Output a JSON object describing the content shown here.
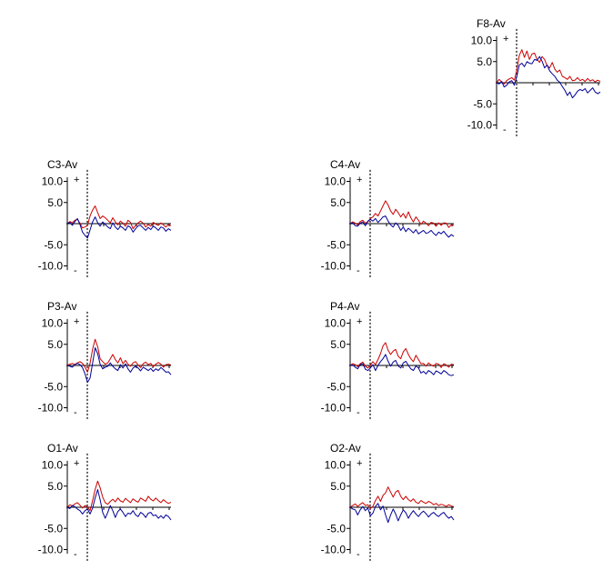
{
  "chart_data": {
    "type": "line",
    "y_ticks": [
      "10.0",
      "5.0",
      "-5.0",
      "-10.0"
    ],
    "y_tick_values": [
      10,
      5,
      -5,
      -10
    ],
    "ylim": [
      -11,
      11
    ],
    "x_ticks": [
      1,
      2,
      3,
      4,
      5
    ],
    "polarity_top": "+",
    "polarity_bottom": "-",
    "series_colors": [
      "#cc0000",
      "#000099"
    ],
    "panels": [
      {
        "title": "F8-Av",
        "series": [
          {
            "color": "#cc0000",
            "values": [
              0,
              0.8,
              0.2,
              -0.3,
              0.5,
              0.9,
              1.2,
              0.6,
              3,
              6.5,
              7.8,
              6,
              7.5,
              5.5,
              6.8,
              7,
              5.5,
              4.8,
              6.2,
              5.5,
              4,
              3.5,
              4.8,
              3.2,
              2.5,
              3,
              1.5,
              1.2,
              0.8,
              1.5,
              0.5,
              0.6,
              1.2,
              0.5,
              0.8,
              0.3,
              1,
              0.4,
              0.7,
              0.2,
              0.6,
              0.3
            ]
          },
          {
            "color": "#000099",
            "values": [
              0,
              -0.3,
              0.3,
              -1,
              -0.6,
              0.2,
              0.5,
              -0.6,
              1.5,
              4.2,
              4.6,
              3.8,
              5,
              4.6,
              4.5,
              5.5,
              5.3,
              6.2,
              5.1,
              3.5,
              4.2,
              2.8,
              2.1,
              1.5,
              0.6,
              0.1,
              -0.9,
              -1.8,
              -3,
              -2.2,
              -3.6,
              -2.9,
              -2,
              -1.6,
              -1.9,
              -1.4,
              -2.4,
              -1.8,
              -1.2,
              -2.2,
              -2.6,
              -2.2
            ]
          }
        ]
      },
      {
        "title": "C3-Av",
        "series": [
          {
            "color": "#cc0000",
            "values": [
              0,
              0.5,
              0.2,
              0.8,
              1,
              0.1,
              -1,
              -0.8,
              -0.4,
              1.8,
              3.2,
              4.2,
              2.6,
              1.2,
              1.8,
              1.4,
              0.8,
              0.2,
              1.4,
              0.4,
              -0.3,
              0.6,
              0.1,
              -0.6,
              0.8,
              0.3,
              -1.2,
              -0.4,
              0.2,
              0.6,
              0.1,
              -0.8,
              -0.2,
              -0.6,
              0.3,
              -0.1,
              -0.4,
              0.2,
              -0.3,
              -0.8,
              -0.2,
              -0.5
            ]
          },
          {
            "color": "#000099",
            "values": [
              0,
              0.3,
              -0.4,
              0.5,
              1.2,
              -0.2,
              -2,
              -2.8,
              -3.4,
              -1.5,
              0.4,
              1.6,
              0.2,
              -0.6,
              0.4,
              -0.2,
              -0.8,
              -1.2,
              0.2,
              -0.8,
              -1.4,
              -0.6,
              -1,
              -1.6,
              -0.5,
              -0.9,
              -2,
              -1.2,
              -0.5,
              -0.4,
              -1,
              -1.6,
              -0.9,
              -1.4,
              -0.6,
              -1,
              -1.6,
              -0.8,
              -1,
              -1.8,
              -1.2,
              -1.6
            ]
          }
        ]
      },
      {
        "title": "C4-Av",
        "series": [
          {
            "color": "#cc0000",
            "values": [
              0,
              0.4,
              0.1,
              -0.3,
              0.5,
              0.8,
              0.1,
              0.4,
              1.2,
              1.6,
              2.4,
              1.8,
              3,
              4.2,
              5.4,
              4.4,
              3,
              2.2,
              3.4,
              2.6,
              1.6,
              2.4,
              1.3,
              2.8,
              1.4,
              0.4,
              1.6,
              0.8,
              -0.2,
              0.6,
              0.1,
              -0.5,
              0.3,
              0.1,
              -0.6,
              0.2,
              -0.4,
              0.2,
              0.1,
              -0.9,
              -0.3,
              -0.4
            ]
          },
          {
            "color": "#000099",
            "values": [
              0,
              0.2,
              -0.5,
              -0.6,
              0.1,
              0.4,
              -0.5,
              0.6,
              1,
              0.6,
              1.2,
              0.3,
              0.9,
              1.6,
              1.8,
              0.6,
              -0.3,
              -0.8,
              0.2,
              -0.4,
              -1.6,
              -0.8,
              -1.9,
              -1.1,
              -1.6,
              -2.2,
              -1.4,
              -2.4,
              -2,
              -1.6,
              -2.3,
              -2.1,
              -1.6,
              -2.3,
              -2.8,
              -2,
              -2.4,
              -1.8,
              -2.6,
              -3.2,
              -2.6,
              -3
            ]
          }
        ]
      },
      {
        "title": "P3-Av",
        "series": [
          {
            "color": "#cc0000",
            "values": [
              0,
              0.3,
              0.5,
              0.2,
              0.6,
              0.9,
              0.5,
              -0.4,
              -1.6,
              0.5,
              3.8,
              6.2,
              4.4,
              1.6,
              0.9,
              0.3,
              0.6,
              1.6,
              2.6,
              1.4,
              0.6,
              1.8,
              0.4,
              1.2,
              0.3,
              -0.2,
              0.6,
              0.9,
              0.1,
              -0.5,
              0.4,
              0.8,
              0.2,
              0.5,
              -0.3,
              0.3,
              0.7,
              0.3,
              -0.4,
              0.2,
              0.3,
              0.1
            ]
          },
          {
            "color": "#000099",
            "values": [
              0,
              -0.2,
              -0.4,
              0.2,
              0.5,
              0.2,
              -0.5,
              -2,
              -4,
              -3,
              0.5,
              4.2,
              2.8,
              0.3,
              -0.8,
              -0.4,
              -0.2,
              0.6,
              -0.2,
              -0.8,
              -1.2,
              0.2,
              -0.6,
              0.4,
              -0.8,
              -1.6,
              -0.6,
              -0.2,
              -0.6,
              -1.3,
              -0.4,
              -0.8,
              -1.2,
              -0.7,
              -1.4,
              -0.8,
              -1.2,
              -0.5,
              -1,
              -1.6,
              -1.5,
              -2.2
            ]
          }
        ]
      },
      {
        "title": "P4-Av",
        "series": [
          {
            "color": "#cc0000",
            "values": [
              0,
              0.4,
              0.2,
              -0.3,
              0.4,
              0.8,
              -0.2,
              -0.6,
              0.1,
              0.9,
              0.2,
              1.4,
              2.8,
              4.6,
              5.4,
              3.6,
              2.6,
              3.4,
              3.8,
              2.2,
              1.6,
              3.2,
              4,
              2.6,
              1.6,
              0.9,
              2.4,
              1.4,
              0.4,
              0.5,
              -0.2,
              0.6,
              0.1,
              -0.2,
              0.5,
              0.3,
              -0.5,
              0.4,
              0.1,
              -0.4,
              0.3,
              0.2
            ]
          },
          {
            "color": "#000099",
            "values": [
              0,
              0.1,
              -0.4,
              -0.8,
              0.2,
              0.4,
              -0.9,
              -1.2,
              -0.6,
              0.2,
              -1.2,
              0,
              0.9,
              1.6,
              2.6,
              1,
              -0.2,
              0.8,
              1.2,
              -0.1,
              -0.6,
              0.6,
              1,
              0,
              -0.8,
              -1.2,
              -0.1,
              -0.6,
              -1.8,
              -1.4,
              -2,
              -1.2,
              -1.6,
              -2.2,
              -1.3,
              -1.6,
              -2,
              -1.2,
              -1.6,
              -2.2,
              -2.4,
              -2.2
            ]
          }
        ]
      },
      {
        "title": "O1-Av",
        "series": [
          {
            "color": "#cc0000",
            "values": [
              0,
              0.6,
              0.3,
              0.8,
              1.1,
              0.5,
              -0.2,
              0.4,
              0.1,
              -0.8,
              1.6,
              4.2,
              6.2,
              4.6,
              2.4,
              1.1,
              0.7,
              1.4,
              1.9,
              1.3,
              2.2,
              1.5,
              1.2,
              2.1,
              1.6,
              1.1,
              2,
              1.5,
              1.2,
              2.2,
              1.8,
              1.4,
              2.6,
              1.9,
              1.5,
              2.2,
              1.6,
              1.1,
              1.8,
              1.3,
              0.9,
              1.2
            ]
          },
          {
            "color": "#000099",
            "values": [
              0,
              -0.3,
              0.4,
              0.1,
              -0.4,
              -0.8,
              -1.6,
              -0.8,
              -0.4,
              -1.6,
              -0.2,
              2.2,
              4.2,
              1.8,
              -1.2,
              -2.6,
              -1.2,
              0.4,
              -0.8,
              -2.4,
              -1,
              -0.4,
              -1.2,
              -2.2,
              -1.4,
              -1.6,
              -0.8,
              -1.8,
              -2.2,
              -1.2,
              -1.6,
              -2.4,
              -1.4,
              -1.2,
              -2,
              -1.8,
              -2.6,
              -2,
              -2.6,
              -1.8,
              -2.2,
              -3
            ]
          }
        ]
      },
      {
        "title": "O2-Av",
        "series": [
          {
            "color": "#cc0000",
            "values": [
              0,
              0.4,
              0.8,
              0.2,
              0.7,
              1.1,
              0.4,
              0.6,
              -0.3,
              0.2,
              1.6,
              2.6,
              1.4,
              2.8,
              3.4,
              4.8,
              3.6,
              2.4,
              3.6,
              4,
              2.6,
              1.8,
              2.6,
              1.8,
              1.4,
              2,
              1.2,
              0.9,
              1.6,
              1.2,
              0.9,
              1.4,
              1.1,
              0.6,
              0.9,
              0.4,
              0.7,
              0.5,
              0.2,
              0.6,
              0.3,
              0.1
            ]
          },
          {
            "color": "#000099",
            "values": [
              0,
              -0.4,
              -0.6,
              -1.8,
              -0.6,
              0.2,
              -0.8,
              -0.2,
              -2,
              -1.4,
              0.2,
              0.9,
              -0.6,
              0.3,
              -1.8,
              -3.6,
              -1.8,
              -0.4,
              -1.6,
              -3.2,
              -1.8,
              -0.6,
              -1.3,
              -2.6,
              -1.6,
              -0.8,
              -1.6,
              -2.2,
              -1.4,
              -0.9,
              -1.5,
              -2.3,
              -1.6,
              -1.2,
              -1.8,
              -2.2,
              -1.6,
              -1.2,
              -2,
              -2.6,
              -2.2,
              -3
            ]
          }
        ]
      }
    ]
  }
}
